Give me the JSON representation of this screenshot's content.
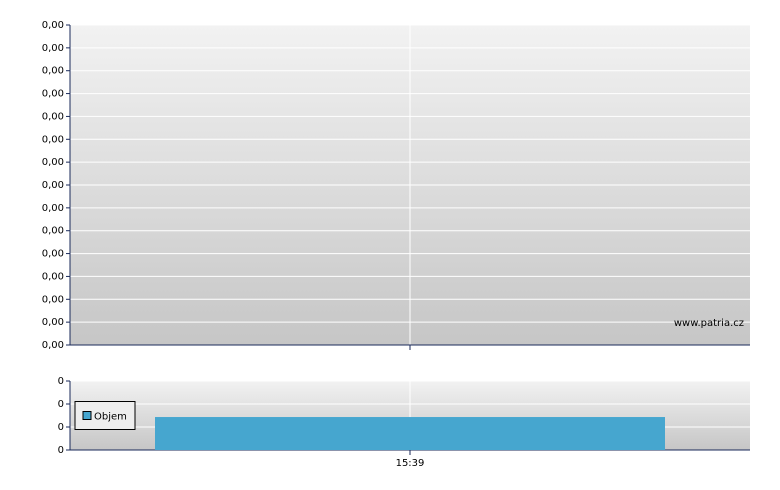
{
  "chart_data": [
    {
      "type": "line",
      "grid": true,
      "watermark": "www.patria.cz",
      "ylim": [
        0,
        0.0014
      ],
      "yticks": [
        {
          "value": 0,
          "label": "0,00"
        },
        {
          "value": 0.0001,
          "label": "0,00"
        },
        {
          "value": 0.0002,
          "label": "0,00"
        },
        {
          "value": 0.0003,
          "label": "0,00"
        },
        {
          "value": 0.0004,
          "label": "0,00"
        },
        {
          "value": 0.0005,
          "label": "0,00"
        },
        {
          "value": 0.0006,
          "label": "0,00"
        },
        {
          "value": 0.0007,
          "label": "0,00"
        },
        {
          "value": 0.0008,
          "label": "0,00"
        },
        {
          "value": 0.0009,
          "label": "0,00"
        },
        {
          "value": 0.001,
          "label": "0,00"
        },
        {
          "value": 0.0011,
          "label": "0,00"
        },
        {
          "value": 0.0012,
          "label": "0,00"
        },
        {
          "value": 0.0013,
          "label": "0,00"
        },
        {
          "value": 0.0014,
          "label": "0,00"
        }
      ]
    },
    {
      "type": "bar",
      "grid": true,
      "legend": "left",
      "categories": [
        "15:39"
      ],
      "series": [
        {
          "name": "Objem",
          "color": "#46a6cf",
          "values": [
            0.43
          ]
        }
      ],
      "ylim": [
        0,
        0.9
      ],
      "yticks": [
        {
          "value": 0,
          "label": "0"
        },
        {
          "value": 0.3,
          "label": "0"
        },
        {
          "value": 0.6,
          "label": "0"
        },
        {
          "value": 0.9,
          "label": "0"
        }
      ]
    }
  ]
}
